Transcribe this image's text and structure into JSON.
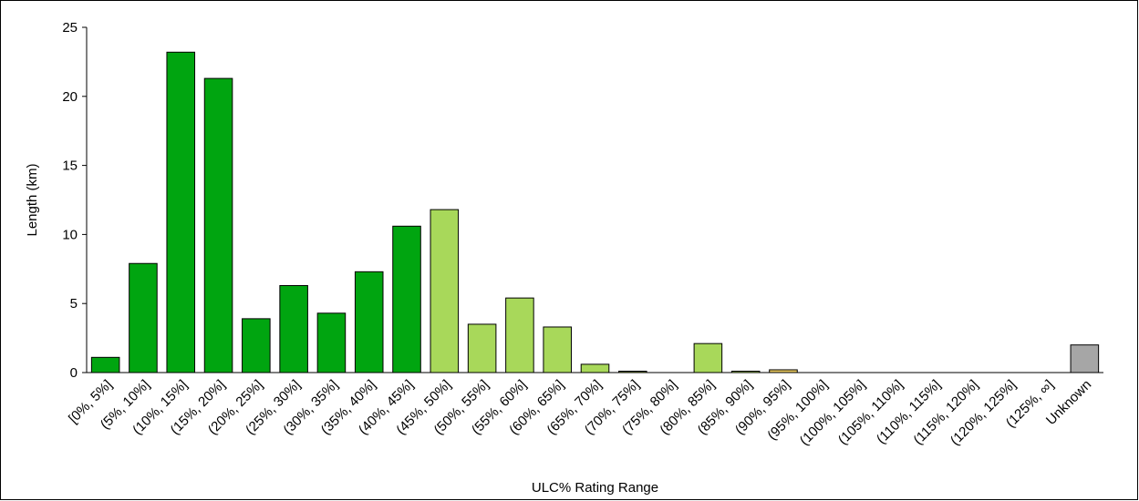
{
  "chart_data": {
    "type": "bar",
    "title": "",
    "xlabel": "ULC% Rating Range",
    "ylabel": "Length (km)",
    "ylim": [
      0,
      25
    ],
    "yticks": [
      0,
      5,
      10,
      15,
      20,
      25
    ],
    "grid": false,
    "categories": [
      "[0%, 5%]",
      "(5%, 10%]",
      "(10%, 15%]",
      "(15%, 20%]",
      "(20%, 25%]",
      "(25%, 30%]",
      "(30%, 35%]",
      "(35%, 40%]",
      "(40%, 45%]",
      "(45%, 50%]",
      "(50%, 55%]",
      "(55%, 60%]",
      "(60%, 65%]",
      "(65%, 70%]",
      "(70%, 75%]",
      "(75%, 80%]",
      "(80%, 85%]",
      "(85%, 90%]",
      "(90%, 95%]",
      "(95%, 100%]",
      "(100%, 105%]",
      "(105%, 110%]",
      "(110%, 115%]",
      "(115%, 120%]",
      "(120%, 125%]",
      "(125%, ∞]",
      "Unknown"
    ],
    "values": [
      1.1,
      7.9,
      23.2,
      21.3,
      3.9,
      6.3,
      4.3,
      7.3,
      10.6,
      11.8,
      3.5,
      5.4,
      3.3,
      0.6,
      0.1,
      0,
      2.1,
      0.1,
      0.2,
      0,
      0,
      0,
      0,
      0,
      0,
      0,
      2.0
    ],
    "bar_colors": [
      "#00a510",
      "#00a510",
      "#00a510",
      "#00a510",
      "#00a510",
      "#00a510",
      "#00a510",
      "#00a510",
      "#00a510",
      "#a8d85a",
      "#a8d85a",
      "#a8d85a",
      "#a8d85a",
      "#a8d85a",
      "#7a8c2e",
      "#a8d85a",
      "#a8d85a",
      "#a8d85a",
      "#e8c860",
      "#f0d070",
      "#f0d070",
      "#f0d070",
      "#f0d070",
      "#f0d070",
      "#f0d070",
      "#f0d070",
      "#a6a6a6"
    ]
  }
}
